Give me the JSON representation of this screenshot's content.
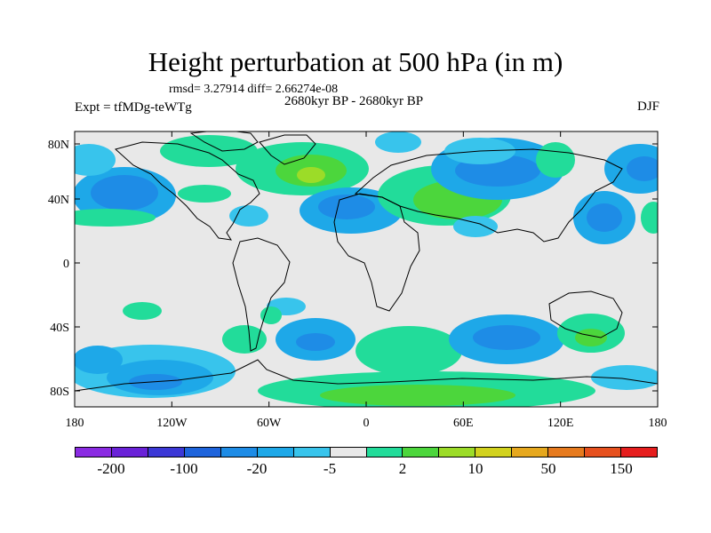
{
  "title": "Height perturbation at 500 hPa (in m)",
  "stats": "rmsd= 3.27914 diff= 2.66274e-08",
  "experiment": "Expt = tfMDg-teWTg",
  "period": "2680kyr BP - 2680kyr BP",
  "season": "DJF",
  "map": {
    "background_color": "#e8e8e8",
    "projection": "cylindrical equidistant",
    "lat_ticks": [
      "80N",
      "40N",
      "0",
      "40S",
      "80S"
    ],
    "lon_ticks": [
      "180",
      "120W",
      "60W",
      "0",
      "60E",
      "120E",
      "180"
    ]
  },
  "colorbar": {
    "colors": [
      "#8a2be2",
      "#6a22d8",
      "#3c38d6",
      "#1e64dc",
      "#1e8ce6",
      "#1ea8e8",
      "#38c4ec",
      "#e8e8e8",
      "#22dc9a",
      "#4cd63c",
      "#9cdc28",
      "#d2d21e",
      "#e6a81e",
      "#e67a1e",
      "#e6501e",
      "#e61e1e"
    ],
    "labels": [
      "-200",
      "-100",
      "-20",
      "-5",
      "2",
      "10",
      "50",
      "150"
    ]
  }
}
